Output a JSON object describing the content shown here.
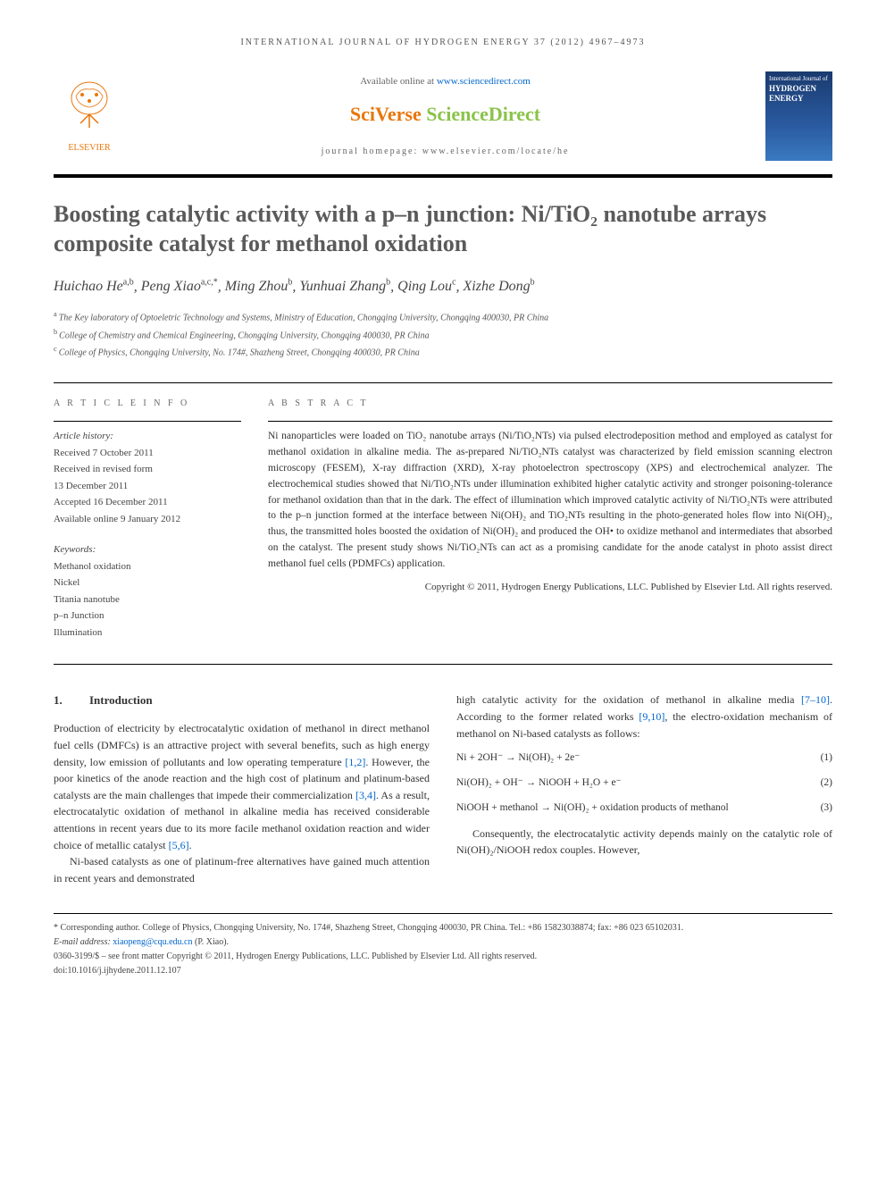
{
  "running_head": "INTERNATIONAL JOURNAL OF HYDROGEN ENERGY 37 (2012) 4967–4973",
  "header": {
    "publisher": "ELSEVIER",
    "available_prefix": "Available online at ",
    "available_url": "www.sciencedirect.com",
    "brand_sci": "SciVerse ",
    "brand_sd": "ScienceDirect",
    "homepage_label": "journal homepage: www.elsevier.com/locate/he",
    "cover_top": "International Journal of",
    "cover_main": "HYDROGEN ENERGY"
  },
  "title": "Boosting catalytic activity with a p–n junction: Ni/TiO₂ nanotube arrays composite catalyst for methanol oxidation",
  "authors_html": "Huichao He",
  "authors": [
    {
      "name": "Huichao He",
      "aff": "a,b"
    },
    {
      "name": "Peng Xiao",
      "aff": "a,c,*"
    },
    {
      "name": "Ming Zhou",
      "aff": "b"
    },
    {
      "name": "Yunhuai Zhang",
      "aff": "b"
    },
    {
      "name": "Qing Lou",
      "aff": "c"
    },
    {
      "name": "Xizhe Dong",
      "aff": "b"
    }
  ],
  "affiliations": [
    {
      "sup": "a",
      "text": "The Key laboratory of Optoeletric Technology and Systems, Ministry of Education, Chongqing University, Chongqing 400030, PR China"
    },
    {
      "sup": "b",
      "text": "College of Chemistry and Chemical Engineering, Chongqing University, Chongqing 400030, PR China"
    },
    {
      "sup": "c",
      "text": "College of Physics, Chongqing University, No. 174#, Shazheng Street, Chongqing 400030, PR China"
    }
  ],
  "info": {
    "heading": "A R T I C L E   I N F O",
    "history_label": "Article history:",
    "history": [
      "Received 7 October 2011",
      "Received in revised form",
      "13 December 2011",
      "Accepted 16 December 2011",
      "Available online 9 January 2012"
    ],
    "keywords_label": "Keywords:",
    "keywords": [
      "Methanol oxidation",
      "Nickel",
      "Titania nanotube",
      "p–n Junction",
      "Illumination"
    ]
  },
  "abstract": {
    "heading": "A B S T R A C T",
    "text": "Ni nanoparticles were loaded on TiO₂ nanotube arrays (Ni/TiO₂NTs) via pulsed electrodeposition method and employed as catalyst for methanol oxidation in alkaline media. The as-prepared Ni/TiO₂NTs catalyst was characterized by field emission scanning electron microscopy (FESEM), X-ray diffraction (XRD), X-ray photoelectron spectroscopy (XPS) and electrochemical analyzer. The electrochemical studies showed that Ni/TiO₂NTs under illumination exhibited higher catalytic activity and stronger poisoning-tolerance for methanol oxidation than that in the dark. The effect of illumination which improved catalytic activity of Ni/TiO₂NTs were attributed to the p–n junction formed at the interface between Ni(OH)₂ and TiO₂NTs resulting in the photo-generated holes flow into Ni(OH)₂, thus, the transmitted holes boosted the oxidation of Ni(OH)₂ and produced the OH• to oxidize methanol and intermediates that absorbed on the catalyst. The present study shows Ni/TiO₂NTs can act as a promising candidate for the anode catalyst in photo assist direct methanol fuel cells (PDMFCs) application.",
    "copyright": "Copyright © 2011, Hydrogen Energy Publications, LLC. Published by Elsevier Ltd. All rights reserved."
  },
  "body": {
    "section_num": "1.",
    "section_title": "Introduction",
    "col1_p1": "Production of electricity by electrocatalytic oxidation of methanol in direct methanol fuel cells (DMFCs) is an attractive project with several benefits, such as high energy density, low emission of pollutants and low operating temperature [1,2]. However, the poor kinetics of the anode reaction and the high cost of platinum and platinum-based catalysts are the main challenges that impede their commercialization [3,4]. As a result, electrocatalytic oxidation of methanol in alkaline media has received considerable attentions in recent years due to its more facile methanol oxidation reaction and wider choice of metallic catalyst [5,6].",
    "col1_p2": "Ni-based catalysts as one of platinum-free alternatives have gained much attention in recent years and demonstrated",
    "col2_p1": "high catalytic activity for the oxidation of methanol in alkaline media [7–10]. According to the former related works [9,10], the electro-oxidation mechanism of methanol on Ni-based catalysts as follows:",
    "eq1": "Ni + 2OH⁻ → Ni(OH)₂ + 2e⁻",
    "eq1_num": "(1)",
    "eq2": "Ni(OH)₂ + OH⁻ → NiOOH + H₂O + e⁻",
    "eq2_num": "(2)",
    "eq3": "NiOOH + methanol → Ni(OH)₂ + oxidation products of methanol",
    "eq3_num": "(3)",
    "col2_p2": "Consequently, the electrocatalytic activity depends mainly on the catalytic role of Ni(OH)₂/NiOOH redox couples. However,"
  },
  "footnotes": {
    "corr": "* Corresponding author. College of Physics, Chongqing University, No. 174#, Shazheng Street, Chongqing 400030, PR China. Tel.: +86 15823038874; fax: +86 023 65102031.",
    "email_label": "E-mail address: ",
    "email": "xiaopeng@cqu.edu.cn",
    "email_suffix": " (P. Xiao).",
    "issn": "0360-3199/$ – see front matter Copyright © 2011, Hydrogen Energy Publications, LLC. Published by Elsevier Ltd. All rights reserved.",
    "doi": "doi:10.1016/j.ijhydene.2011.12.107"
  },
  "colors": {
    "orange": "#e8760b",
    "green": "#8bc34a",
    "link": "#0066cc",
    "cover_bg": "#1a3a6e"
  }
}
